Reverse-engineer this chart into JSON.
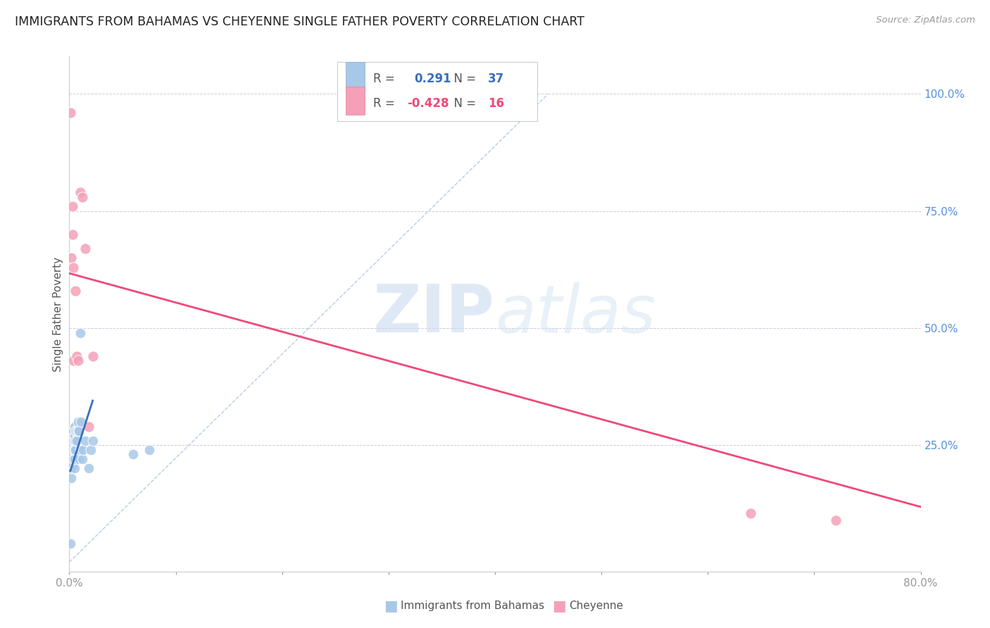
{
  "title": "IMMIGRANTS FROM BAHAMAS VS CHEYENNE SINGLE FATHER POVERTY CORRELATION CHART",
  "source": "Source: ZipAtlas.com",
  "ylabel": "Single Father Poverty",
  "xlim": [
    0.0,
    0.8
  ],
  "ylim": [
    -0.02,
    1.08
  ],
  "xtick_positions": [
    0.0,
    0.1,
    0.2,
    0.3,
    0.4,
    0.5,
    0.6,
    0.7,
    0.8
  ],
  "xticklabels": [
    "0.0%",
    "",
    "",
    "",
    "",
    "",
    "",
    "",
    "80.0%"
  ],
  "ytick_positions": [
    0.0,
    0.25,
    0.5,
    0.75,
    1.0
  ],
  "yticklabels_right": [
    "",
    "25.0%",
    "50.0%",
    "75.0%",
    "100.0%"
  ],
  "legend_blue_r": "0.291",
  "legend_blue_n": "37",
  "legend_pink_r": "-0.428",
  "legend_pink_n": "16",
  "blue_color": "#a8c8e8",
  "pink_color": "#f5a0b8",
  "blue_line_color": "#3a6fbb",
  "pink_line_color": "#f04878",
  "dashed_line_color": "#b8cce4",
  "watermark_zip": "ZIP",
  "watermark_atlas": "atlas",
  "blue_dots_x": [
    0.001,
    0.002,
    0.002,
    0.002,
    0.003,
    0.003,
    0.003,
    0.004,
    0.004,
    0.004,
    0.004,
    0.005,
    0.005,
    0.005,
    0.005,
    0.005,
    0.005,
    0.006,
    0.006,
    0.006,
    0.007,
    0.007,
    0.008,
    0.008,
    0.009,
    0.009,
    0.01,
    0.01,
    0.011,
    0.012,
    0.013,
    0.015,
    0.018,
    0.02,
    0.022,
    0.06,
    0.075
  ],
  "blue_dots_y": [
    0.04,
    0.18,
    0.2,
    0.22,
    0.21,
    0.23,
    0.25,
    0.22,
    0.24,
    0.26,
    0.28,
    0.2,
    0.22,
    0.24,
    0.26,
    0.27,
    0.29,
    0.24,
    0.26,
    0.28,
    0.26,
    0.28,
    0.28,
    0.3,
    0.22,
    0.28,
    0.24,
    0.49,
    0.3,
    0.22,
    0.24,
    0.26,
    0.2,
    0.24,
    0.26,
    0.23,
    0.24
  ],
  "pink_dots_x": [
    0.001,
    0.002,
    0.003,
    0.003,
    0.004,
    0.004,
    0.006,
    0.007,
    0.008,
    0.01,
    0.012,
    0.015,
    0.018,
    0.022,
    0.64,
    0.72
  ],
  "pink_dots_y": [
    0.96,
    0.65,
    0.76,
    0.7,
    0.63,
    0.43,
    0.58,
    0.44,
    0.43,
    0.79,
    0.78,
    0.67,
    0.29,
    0.44,
    0.105,
    0.09
  ],
  "blue_trend_x": [
    0.001,
    0.022
  ],
  "blue_trend_y": [
    0.195,
    0.345
  ],
  "pink_trend_x": [
    -0.005,
    0.8
  ],
  "pink_trend_y": [
    0.62,
    0.118
  ],
  "diag_line_x": [
    0.0,
    0.45
  ],
  "diag_line_y": [
    0.0,
    1.0
  ]
}
